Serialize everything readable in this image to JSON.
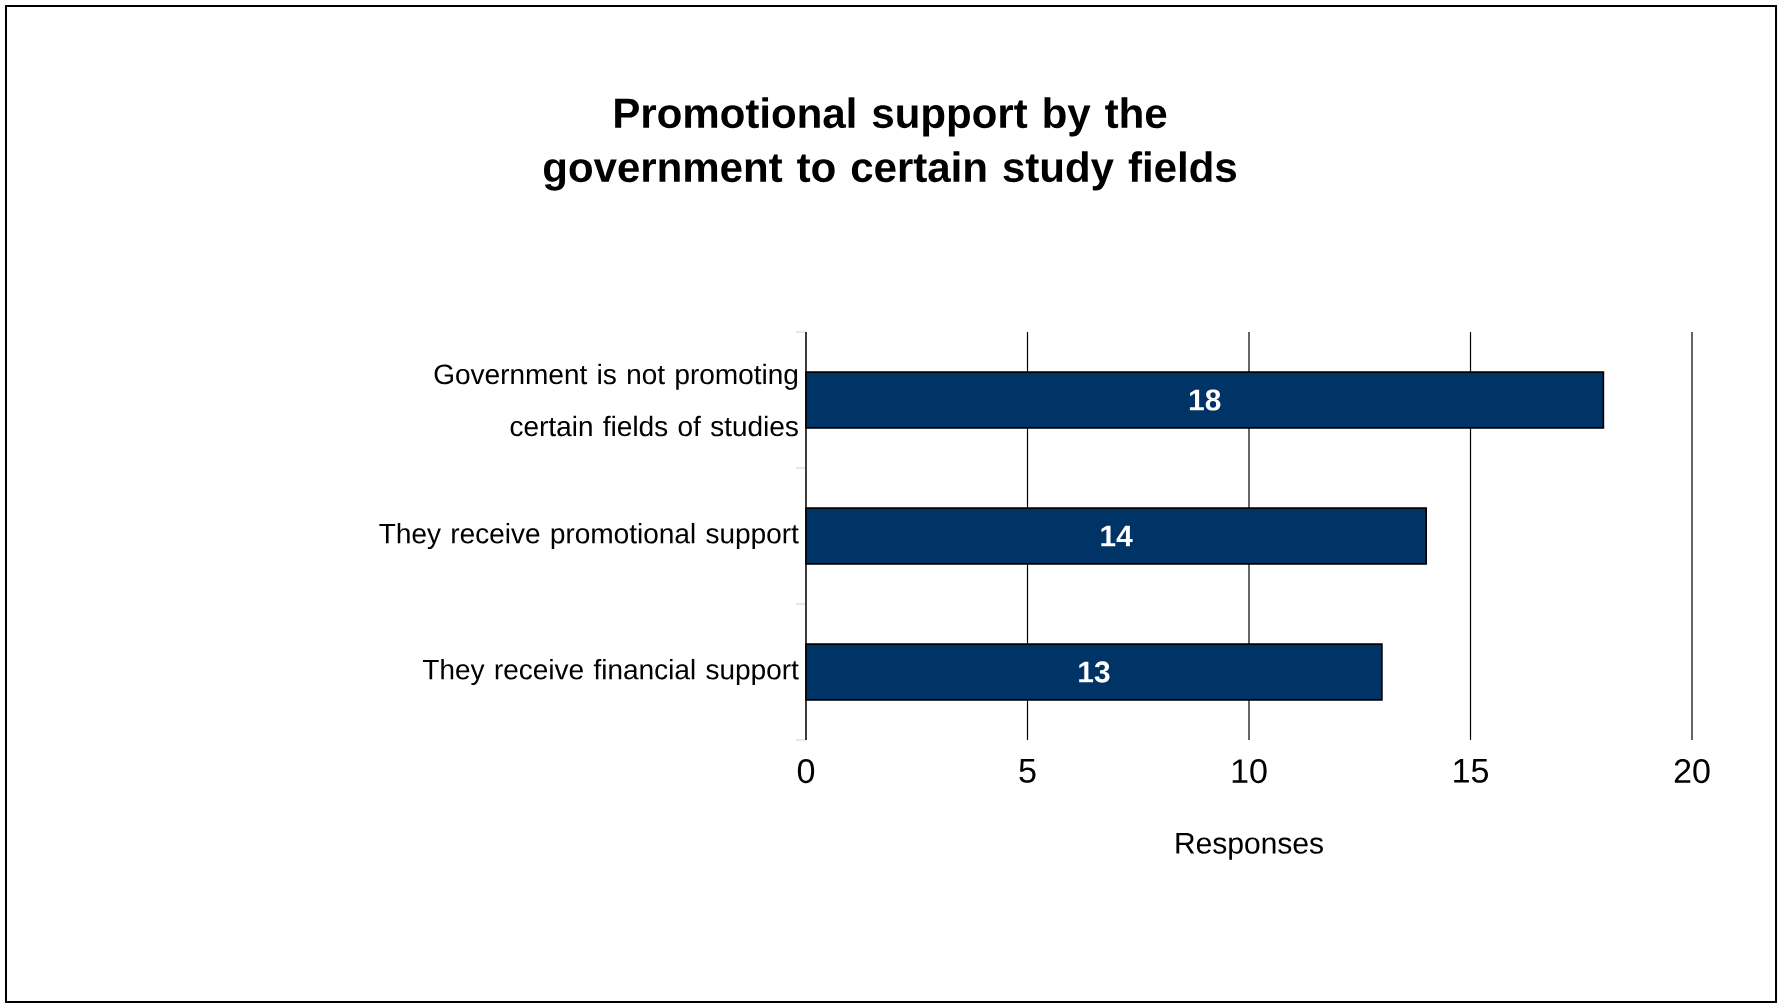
{
  "chart_data": {
    "type": "bar",
    "orientation": "horizontal",
    "title": "Promotional support by the government to certain study fields",
    "xlabel": "Responses",
    "categories": [
      "Government is not promoting certain fields of studies",
      "They receive promotional support",
      "They receive financial support"
    ],
    "values": [
      18,
      14,
      13
    ],
    "color": "#003366",
    "xlim": [
      0,
      20
    ],
    "xticks": [
      0,
      5,
      10,
      15,
      20
    ],
    "grid": "x",
    "data_labels": true
  }
}
